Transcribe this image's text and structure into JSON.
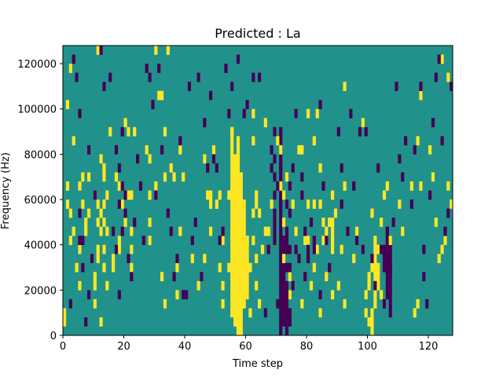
{
  "chart_data": {
    "type": "heatmap",
    "title": "Predicted : La",
    "xlabel": "Time step",
    "ylabel": "Frequency (Hz)",
    "xlim": [
      0,
      128
    ],
    "ylim": [
      0,
      128000
    ],
    "x_ticks": [
      0,
      20,
      40,
      60,
      80,
      100,
      120
    ],
    "y_ticks": [
      0,
      20000,
      40000,
      60000,
      80000,
      100000,
      120000
    ],
    "y_tick_labels": [
      "0",
      "20000",
      "40000",
      "60000",
      "80000",
      "100000",
      "120000"
    ],
    "grid": false,
    "legend": "none",
    "colormap": {
      "-1": "#440154",
      "0": "#21918c",
      "1": "#fde725"
    },
    "background_value": 0,
    "cells_note_units": "x = time step index, y = frequency bin (Hz, bin height 4000)",
    "high_cells": [
      [
        0,
        8000
      ],
      [
        0,
        4000
      ],
      [
        1,
        100000
      ],
      [
        1,
        64000
      ],
      [
        1,
        56000
      ],
      [
        2,
        116000
      ],
      [
        2,
        52000
      ],
      [
        2,
        40000
      ],
      [
        3,
        84000
      ],
      [
        3,
        44000
      ],
      [
        4,
        28000
      ],
      [
        5,
        20000
      ],
      [
        5,
        64000
      ],
      [
        5,
        36000
      ],
      [
        6,
        56000
      ],
      [
        6,
        68000
      ],
      [
        7,
        48000
      ],
      [
        7,
        44000
      ],
      [
        8,
        68000
      ],
      [
        8,
        52000
      ],
      [
        9,
        32000
      ],
      [
        10,
        12000
      ],
      [
        10,
        20000
      ],
      [
        10,
        60000
      ],
      [
        10,
        24000
      ],
      [
        11,
        124000
      ],
      [
        11,
        32000
      ],
      [
        11,
        36000
      ],
      [
        11,
        56000
      ],
      [
        11,
        48000
      ],
      [
        12,
        4000
      ],
      [
        12,
        44000
      ],
      [
        12,
        52000
      ],
      [
        12,
        76000
      ],
      [
        13,
        28000
      ],
      [
        13,
        36000
      ],
      [
        13,
        48000
      ],
      [
        13,
        56000
      ],
      [
        13,
        68000
      ],
      [
        13,
        72000
      ],
      [
        14,
        20000
      ],
      [
        14,
        60000
      ],
      [
        14,
        44000
      ],
      [
        15,
        88000
      ],
      [
        16,
        28000
      ],
      [
        16,
        32000
      ],
      [
        17,
        68000
      ],
      [
        18,
        64000
      ],
      [
        18,
        40000
      ],
      [
        18,
        36000
      ],
      [
        19,
        56000
      ],
      [
        20,
        48000
      ],
      [
        20,
        92000
      ],
      [
        21,
        88000
      ],
      [
        21,
        60000
      ],
      [
        22,
        60000
      ],
      [
        22,
        36000
      ],
      [
        22,
        28000
      ],
      [
        22,
        44000
      ],
      [
        23,
        88000
      ],
      [
        27,
        80000
      ],
      [
        28,
        48000
      ],
      [
        28,
        76000
      ],
      [
        28,
        60000
      ],
      [
        28,
        40000
      ],
      [
        30,
        64000
      ],
      [
        30,
        124000
      ],
      [
        31,
        104000
      ],
      [
        32,
        104000
      ],
      [
        32,
        24000
      ],
      [
        33,
        12000
      ],
      [
        33,
        88000
      ],
      [
        33,
        68000
      ],
      [
        34,
        124000
      ],
      [
        35,
        72000
      ],
      [
        36,
        68000
      ],
      [
        37,
        16000
      ],
      [
        37,
        28000
      ],
      [
        38,
        44000
      ],
      [
        38,
        80000
      ],
      [
        39,
        68000
      ],
      [
        42,
        32000
      ],
      [
        44,
        20000
      ],
      [
        46,
        32000
      ],
      [
        46,
        76000
      ],
      [
        47,
        60000
      ],
      [
        48,
        60000
      ],
      [
        48,
        56000
      ],
      [
        48,
        44000
      ],
      [
        49,
        80000
      ],
      [
        50,
        56000
      ],
      [
        51,
        60000
      ],
      [
        51,
        28000
      ],
      [
        52,
        40000
      ],
      [
        52,
        12000
      ],
      [
        52,
        20000
      ],
      [
        54,
        60000
      ],
      [
        54,
        28000
      ],
      [
        55,
        88000
      ],
      [
        55,
        60000
      ],
      [
        56,
        8000
      ],
      [
        56,
        4000
      ],
      [
        57,
        16000
      ],
      [
        57,
        12000
      ],
      [
        58,
        24000
      ],
      [
        58,
        32000
      ],
      [
        60,
        40000
      ],
      [
        61,
        28000
      ],
      [
        61,
        8000
      ],
      [
        62,
        84000
      ],
      [
        62,
        96000
      ],
      [
        62,
        52000
      ],
      [
        62,
        40000
      ],
      [
        63,
        20000
      ],
      [
        63,
        32000
      ],
      [
        63,
        56000
      ],
      [
        63,
        60000
      ],
      [
        64,
        52000
      ],
      [
        64,
        12000
      ],
      [
        65,
        36000
      ],
      [
        66,
        44000
      ],
      [
        66,
        92000
      ],
      [
        67,
        44000
      ],
      [
        68,
        56000
      ],
      [
        70,
        84000
      ],
      [
        71,
        80000
      ],
      [
        71,
        64000
      ],
      [
        72,
        60000
      ],
      [
        72,
        48000
      ],
      [
        72,
        32000
      ],
      [
        73,
        68000
      ],
      [
        74,
        16000
      ],
      [
        74,
        24000
      ],
      [
        75,
        56000
      ],
      [
        76,
        44000
      ],
      [
        77,
        80000
      ],
      [
        78,
        80000
      ],
      [
        78,
        12000
      ],
      [
        79,
        40000
      ],
      [
        80,
        96000
      ],
      [
        80,
        56000
      ],
      [
        80,
        40000
      ],
      [
        81,
        20000
      ],
      [
        82,
        28000
      ],
      [
        82,
        56000
      ],
      [
        82,
        84000
      ],
      [
        83,
        96000
      ],
      [
        83,
        36000
      ],
      [
        84,
        56000
      ],
      [
        84,
        72000
      ],
      [
        84,
        8000
      ],
      [
        85,
        40000
      ],
      [
        85,
        48000
      ],
      [
        86,
        44000
      ],
      [
        86,
        24000
      ],
      [
        87,
        48000
      ],
      [
        88,
        16000
      ],
      [
        88,
        60000
      ],
      [
        89,
        52000
      ],
      [
        90,
        20000
      ],
      [
        91,
        36000
      ],
      [
        92,
        108000
      ],
      [
        92,
        64000
      ],
      [
        92,
        12000
      ],
      [
        95,
        32000
      ],
      [
        96,
        44000
      ],
      [
        98,
        92000
      ],
      [
        99,
        8000
      ],
      [
        99,
        16000
      ],
      [
        100,
        20000
      ],
      [
        100,
        4000
      ],
      [
        101,
        52000
      ],
      [
        101,
        28000
      ],
      [
        102,
        40000
      ],
      [
        103,
        36000
      ],
      [
        103,
        20000
      ],
      [
        104,
        16000
      ],
      [
        104,
        48000
      ],
      [
        105,
        60000
      ],
      [
        106,
        64000
      ],
      [
        107,
        40000
      ],
      [
        110,
        56000
      ],
      [
        111,
        44000
      ],
      [
        114,
        64000
      ],
      [
        115,
        8000
      ],
      [
        116,
        12000
      ],
      [
        116,
        84000
      ],
      [
        117,
        104000
      ],
      [
        117,
        64000
      ],
      [
        120,
        80000
      ],
      [
        121,
        68000
      ],
      [
        122,
        48000
      ],
      [
        123,
        32000
      ],
      [
        124,
        36000
      ],
      [
        124,
        120000
      ],
      [
        125,
        40000
      ],
      [
        126,
        112000
      ],
      [
        126,
        64000
      ],
      [
        127,
        56000
      ]
    ],
    "low_cells": [
      [
        2,
        12000
      ],
      [
        3,
        120000
      ],
      [
        4,
        112000
      ],
      [
        5,
        96000
      ],
      [
        5,
        52000
      ],
      [
        5,
        40000
      ],
      [
        6,
        40000
      ],
      [
        6,
        28000
      ],
      [
        7,
        4000
      ],
      [
        8,
        16000
      ],
      [
        8,
        80000
      ],
      [
        9,
        32000
      ],
      [
        10,
        60000
      ],
      [
        12,
        124000
      ],
      [
        13,
        108000
      ],
      [
        15,
        112000
      ],
      [
        16,
        44000
      ],
      [
        17,
        36000
      ],
      [
        17,
        80000
      ],
      [
        18,
        56000
      ],
      [
        18,
        72000
      ],
      [
        18,
        16000
      ],
      [
        19,
        88000
      ],
      [
        19,
        44000
      ],
      [
        19,
        64000
      ],
      [
        20,
        60000
      ],
      [
        20,
        52000
      ],
      [
        21,
        32000
      ],
      [
        22,
        24000
      ],
      [
        23,
        48000
      ],
      [
        24,
        76000
      ],
      [
        25,
        64000
      ],
      [
        26,
        40000
      ],
      [
        27,
        116000
      ],
      [
        28,
        112000
      ],
      [
        29,
        100000
      ],
      [
        30,
        60000
      ],
      [
        31,
        116000
      ],
      [
        32,
        80000
      ],
      [
        34,
        52000
      ],
      [
        35,
        44000
      ],
      [
        36,
        24000
      ],
      [
        37,
        32000
      ],
      [
        38,
        84000
      ],
      [
        39,
        16000
      ],
      [
        40,
        16000
      ],
      [
        41,
        108000
      ],
      [
        42,
        40000
      ],
      [
        43,
        48000
      ],
      [
        44,
        112000
      ],
      [
        45,
        24000
      ],
      [
        46,
        92000
      ],
      [
        47,
        72000
      ],
      [
        48,
        104000
      ],
      [
        49,
        76000
      ],
      [
        50,
        72000
      ],
      [
        51,
        40000
      ],
      [
        52,
        44000
      ],
      [
        53,
        116000
      ],
      [
        54,
        96000
      ],
      [
        55,
        108000
      ],
      [
        57,
        120000
      ],
      [
        59,
        96000
      ],
      [
        60,
        100000
      ],
      [
        62,
        112000
      ],
      [
        64,
        112000
      ],
      [
        66,
        8000
      ],
      [
        67,
        36000
      ],
      [
        68,
        80000
      ],
      [
        68,
        72000
      ],
      [
        69,
        68000
      ],
      [
        69,
        88000
      ],
      [
        69,
        76000
      ],
      [
        69,
        60000
      ],
      [
        69,
        52000
      ],
      [
        69,
        48000
      ],
      [
        69,
        44000
      ],
      [
        69,
        40000
      ],
      [
        70,
        12000
      ],
      [
        70,
        64000
      ],
      [
        71,
        72000
      ],
      [
        71,
        56000
      ],
      [
        72,
        24000
      ],
      [
        72,
        20000
      ],
      [
        72,
        16000
      ],
      [
        72,
        12000
      ],
      [
        72,
        8000
      ],
      [
        72,
        4000
      ],
      [
        73,
        56000
      ],
      [
        73,
        44000
      ],
      [
        73,
        40000
      ],
      [
        73,
        36000
      ],
      [
        73,
        28000
      ],
      [
        73,
        20000
      ],
      [
        73,
        16000
      ],
      [
        73,
        12000
      ],
      [
        73,
        8000
      ],
      [
        73,
        4000
      ],
      [
        74,
        28000
      ],
      [
        74,
        36000
      ],
      [
        74,
        64000
      ],
      [
        74,
        52000
      ],
      [
        75,
        72000
      ],
      [
        75,
        20000
      ],
      [
        76,
        96000
      ],
      [
        76,
        36000
      ],
      [
        77,
        32000
      ],
      [
        78,
        68000
      ],
      [
        78,
        60000
      ],
      [
        79,
        44000
      ],
      [
        79,
        24000
      ],
      [
        80,
        36000
      ],
      [
        80,
        32000
      ],
      [
        81,
        48000
      ],
      [
        82,
        36000
      ],
      [
        82,
        40000
      ],
      [
        84,
        100000
      ],
      [
        84,
        16000
      ],
      [
        85,
        64000
      ],
      [
        86,
        40000
      ],
      [
        87,
        28000
      ],
      [
        90,
        88000
      ],
      [
        91,
        72000
      ],
      [
        91,
        56000
      ],
      [
        93,
        44000
      ],
      [
        94,
        96000
      ],
      [
        95,
        64000
      ],
      [
        96,
        40000
      ],
      [
        97,
        88000
      ],
      [
        98,
        36000
      ],
      [
        99,
        88000
      ],
      [
        101,
        32000
      ],
      [
        102,
        20000
      ],
      [
        103,
        72000
      ],
      [
        104,
        36000
      ],
      [
        105,
        12000
      ],
      [
        106,
        44000
      ],
      [
        106,
        32000
      ],
      [
        107,
        28000
      ],
      [
        108,
        48000
      ],
      [
        109,
        108000
      ],
      [
        110,
        76000
      ],
      [
        111,
        68000
      ],
      [
        112,
        84000
      ],
      [
        114,
        56000
      ],
      [
        115,
        80000
      ],
      [
        117,
        108000
      ],
      [
        118,
        36000
      ],
      [
        118,
        24000
      ],
      [
        119,
        12000
      ],
      [
        120,
        60000
      ],
      [
        121,
        92000
      ],
      [
        122,
        112000
      ],
      [
        123,
        120000
      ],
      [
        124,
        84000
      ],
      [
        125,
        44000
      ],
      [
        126,
        52000
      ],
      [
        127,
        108000
      ]
    ],
    "high_bands": [
      {
        "x": 55,
        "y0": 8000,
        "y1": 92000
      },
      {
        "x": 56,
        "y0": 12000,
        "y1": 80000
      },
      {
        "x": 57,
        "y0": 0,
        "y1": 88000
      },
      {
        "x": 58,
        "y0": 0,
        "y1": 72000
      },
      {
        "x": 59,
        "y0": 12000,
        "y1": 60000
      },
      {
        "x": 60,
        "y0": 16000,
        "y1": 44000
      },
      {
        "x": 88,
        "y0": 36000,
        "y1": 52000
      },
      {
        "x": 100,
        "y0": 24000,
        "y1": 28000
      },
      {
        "x": 101,
        "y0": 0,
        "y1": 12000
      },
      {
        "x": 102,
        "y0": 12000,
        "y1": 40000
      },
      {
        "x": 103,
        "y0": 20000,
        "y1": 32000
      }
    ],
    "low_bands": [
      {
        "x": 71,
        "y0": 0,
        "y1": 92000
      },
      {
        "x": 72,
        "y0": 24000,
        "y1": 44000
      },
      {
        "x": 73,
        "y0": 0,
        "y1": 4000
      },
      {
        "x": 74,
        "y0": 4000,
        "y1": 12000
      },
      {
        "x": 105,
        "y0": 28000,
        "y1": 40000
      },
      {
        "x": 106,
        "y0": 16000,
        "y1": 48000
      },
      {
        "x": 107,
        "y0": 8000,
        "y1": 44000
      }
    ]
  }
}
